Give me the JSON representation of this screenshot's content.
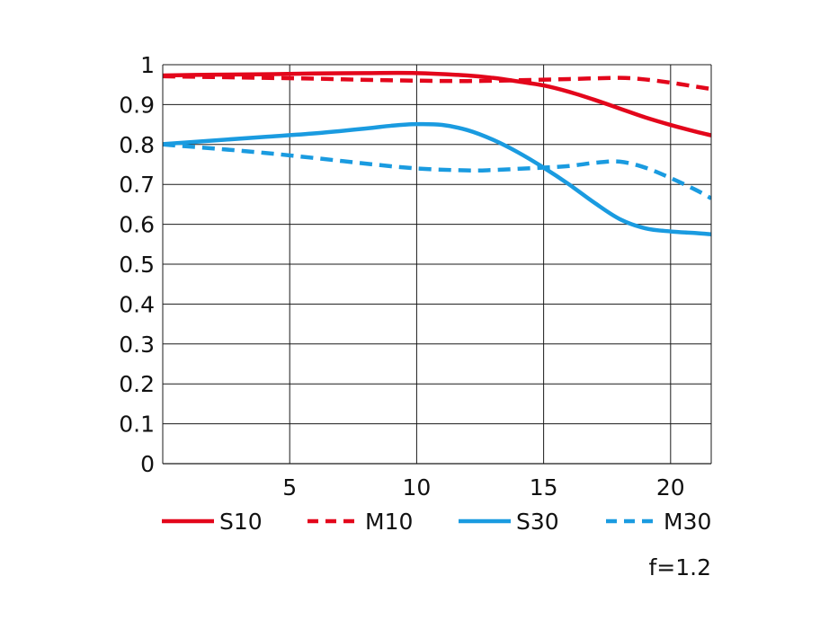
{
  "chart_data": {
    "type": "line",
    "xlim": [
      0,
      21.6
    ],
    "ylim": [
      0,
      1
    ],
    "x_ticks": [
      5,
      10,
      15,
      20
    ],
    "x_tick_labels": [
      "5",
      "10",
      "15",
      "20"
    ],
    "y_ticks": [
      0,
      0.1,
      0.2,
      0.3,
      0.4,
      0.5,
      0.6,
      0.7,
      0.8,
      0.9,
      1
    ],
    "y_tick_labels": [
      "0",
      "0.1",
      "0.2",
      "0.3",
      "0.4",
      "0.5",
      "0.6",
      "0.7",
      "0.8",
      "0.9",
      "1"
    ],
    "grid": true,
    "legend_position": "bottom",
    "annotation": "f=1.2",
    "series": [
      {
        "name": "S10",
        "color": "#e3061b",
        "style": "solid",
        "x": [
          0,
          2,
          4,
          6,
          8,
          10,
          12,
          13,
          14,
          15,
          16,
          17,
          18,
          19,
          20,
          21,
          21.6
        ],
        "y": [
          0.973,
          0.975,
          0.976,
          0.978,
          0.979,
          0.979,
          0.973,
          0.967,
          0.958,
          0.948,
          0.932,
          0.912,
          0.89,
          0.868,
          0.849,
          0.832,
          0.823
        ]
      },
      {
        "name": "M10",
        "color": "#e3061b",
        "style": "dashed",
        "x": [
          0,
          2,
          4,
          6,
          8,
          10,
          12,
          14,
          16,
          18,
          19,
          20,
          21,
          21.6
        ],
        "y": [
          0.971,
          0.969,
          0.967,
          0.965,
          0.962,
          0.96,
          0.959,
          0.961,
          0.964,
          0.967,
          0.963,
          0.955,
          0.945,
          0.939
        ]
      },
      {
        "name": "S30",
        "color": "#1a9be0",
        "style": "solid",
        "x": [
          0,
          2,
          4,
          6,
          8,
          9,
          10,
          11,
          12,
          13,
          14,
          15,
          16,
          17,
          18,
          19,
          20,
          21,
          21.6
        ],
        "y": [
          0.801,
          0.81,
          0.819,
          0.828,
          0.84,
          0.847,
          0.851,
          0.849,
          0.836,
          0.812,
          0.78,
          0.742,
          0.7,
          0.654,
          0.613,
          0.59,
          0.582,
          0.578,
          0.575
        ]
      },
      {
        "name": "M30",
        "color": "#1a9be0",
        "style": "dashed",
        "x": [
          0,
          2,
          4,
          6,
          8,
          10,
          12,
          13,
          14,
          15,
          16,
          17,
          18,
          19,
          20,
          21,
          21.6
        ],
        "y": [
          0.8,
          0.79,
          0.779,
          0.766,
          0.752,
          0.74,
          0.735,
          0.736,
          0.739,
          0.742,
          0.746,
          0.754,
          0.757,
          0.742,
          0.716,
          0.686,
          0.665
        ]
      }
    ]
  }
}
